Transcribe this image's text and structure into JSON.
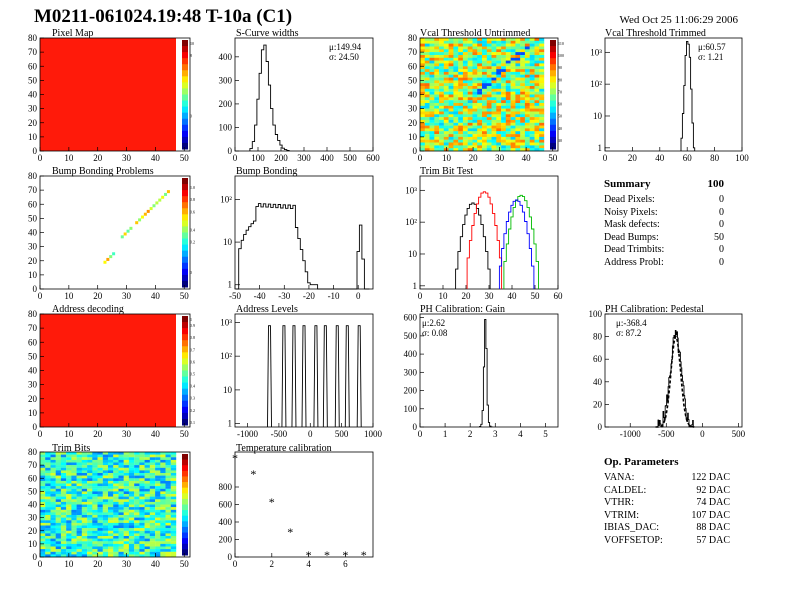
{
  "header": {
    "title": "M0211-061024.19:48 T-10a (C1)",
    "date": "Wed Oct 25 11:06:29 2006"
  },
  "colors": {
    "map_red": "#ff1a0a",
    "line": "#000000",
    "red": "#ff0000",
    "blue": "#0000ff",
    "green": "#00bb00"
  },
  "plots": [
    {
      "id": "pixel-map",
      "title": "Pixel Map",
      "type": "heatmap",
      "x_ticks": [
        0,
        10,
        20,
        30,
        40,
        50
      ],
      "y_ticks": [
        0,
        10,
        20,
        30,
        40,
        50,
        60,
        70,
        80
      ],
      "xlim": [
        0,
        52
      ],
      "ylim": [
        0,
        80
      ],
      "fill": "uniform-red",
      "palette_labels": [
        "10",
        "",
        "8",
        "",
        "",
        "",
        "",
        "",
        "",
        "",
        "",
        "",
        "0",
        "",
        "",
        "",
        "",
        ""
      ]
    },
    {
      "id": "scurve-widths",
      "title": "S-Curve widths",
      "type": "histogram",
      "x_ticks": [
        0,
        100,
        200,
        300,
        400,
        500,
        600
      ],
      "y_ticks": [
        0,
        100,
        200,
        300,
        400
      ],
      "xlim": [
        0,
        600
      ],
      "ylim": [
        0,
        480
      ],
      "stats": [
        "μ:149.94",
        "σ: 24.50"
      ],
      "x": [
        70,
        80,
        90,
        100,
        110,
        120,
        130,
        140,
        150,
        160,
        170,
        180,
        190,
        200,
        210,
        220,
        230
      ],
      "y": [
        10,
        40,
        110,
        220,
        330,
        430,
        450,
        380,
        280,
        180,
        110,
        70,
        45,
        25,
        12,
        6,
        2
      ]
    },
    {
      "id": "vcal-untrimmed",
      "title": "Vcal Threshold Untrimmed",
      "type": "heatmap",
      "x_ticks": [
        0,
        10,
        20,
        30,
        40,
        50
      ],
      "y_ticks": [
        0,
        10,
        20,
        30,
        40,
        50,
        60,
        70,
        80
      ],
      "xlim": [
        0,
        52
      ],
      "ylim": [
        0,
        80
      ],
      "fill": "green-noise",
      "palette_labels": [
        "110",
        "",
        "100",
        "",
        "90",
        "",
        "80",
        "",
        "70",
        "",
        "60",
        "",
        "50",
        "",
        "40",
        "",
        "30",
        ""
      ]
    },
    {
      "id": "vcal-trimmed",
      "title": "Vcal Threshold Trimmed",
      "type": "histogram",
      "log": true,
      "x_ticks": [
        0,
        20,
        40,
        60,
        80,
        100
      ],
      "y_labels": [
        "1",
        "10",
        "10²",
        "10³"
      ],
      "xlim": [
        0,
        100
      ],
      "stats": [
        "μ:60.57",
        "σ: 1.21"
      ],
      "x": [
        56,
        57,
        58,
        59,
        60,
        61,
        62,
        63,
        64,
        65
      ],
      "y": [
        2,
        12,
        90,
        800,
        2200,
        1800,
        700,
        70,
        6,
        1
      ]
    },
    {
      "id": "bump-problems",
      "title": "Bump Bonding Problems",
      "type": "scatter-map",
      "x_ticks": [
        0,
        10,
        20,
        30,
        40,
        50
      ],
      "y_ticks": [
        0,
        10,
        20,
        30,
        40,
        50,
        60,
        70,
        80
      ],
      "xlim": [
        0,
        52
      ],
      "ylim": [
        0,
        80
      ],
      "palette_labels": [
        "",
        "1.0",
        "",
        "0.8",
        "",
        "0.6",
        "",
        "",
        "0.4",
        "",
        "0.2",
        "",
        "",
        "",
        "",
        "0",
        "",
        ""
      ]
    },
    {
      "id": "bump-bonding",
      "title": "Bump Bonding",
      "type": "histogram",
      "log": true,
      "x_ticks": [
        -50,
        -40,
        -30,
        -20,
        -10,
        0
      ],
      "y_labels": [
        "1",
        "10",
        "10²"
      ],
      "xlim": [
        -50,
        6
      ]
    },
    {
      "id": "trim-bit",
      "title": "Trim Bit Test",
      "type": "histogram",
      "log": true,
      "x_ticks": [
        0,
        10,
        20,
        30,
        40,
        50,
        60
      ],
      "y_labels": [
        "1",
        "10",
        "10²",
        "10³"
      ],
      "xlim": [
        0,
        60
      ]
    },
    {
      "id": "address-decoding",
      "title": "Address decoding",
      "type": "heatmap",
      "x_ticks": [
        0,
        10,
        20,
        30,
        40,
        50
      ],
      "y_ticks": [
        0,
        10,
        20,
        30,
        40,
        50,
        60,
        70,
        80
      ],
      "xlim": [
        0,
        52
      ],
      "ylim": [
        0,
        80
      ],
      "fill": "uniform-red",
      "palette_labels": [
        "1",
        "0.9",
        "",
        "0.8",
        "",
        "0.7",
        "",
        "0.6",
        "",
        "0.5",
        "",
        "0.4",
        "",
        "0.3",
        "",
        "0.2",
        "",
        "0.1"
      ]
    },
    {
      "id": "address-levels",
      "title": "Address Levels",
      "type": "histogram",
      "log": true,
      "x_ticks": [
        -1000,
        -500,
        0,
        500,
        1000
      ],
      "tick_labels": [
        "-1000",
        "-500",
        "0",
        "500",
        "1000"
      ],
      "y_labels": [
        "1",
        "10",
        "10²",
        "10³"
      ],
      "xlim": [
        -1200,
        1000
      ],
      "peaks": [
        -650,
        -420,
        -260,
        -100,
        90,
        240,
        430,
        590,
        780
      ]
    },
    {
      "id": "ph-gain",
      "title": "PH Calibration: Gain",
      "type": "histogram",
      "x_ticks": [
        0,
        1,
        2,
        3,
        4,
        5
      ],
      "y_ticks": [
        0,
        100,
        200,
        300,
        400,
        500,
        600
      ],
      "xlim": [
        0,
        5.5
      ],
      "ylim": [
        0,
        620
      ],
      "stats": [
        "μ:2.62",
        "σ: 0.08"
      ],
      "x": [
        2.4,
        2.45,
        2.5,
        2.55,
        2.6,
        2.65,
        2.7,
        2.75,
        2.8,
        2.85
      ],
      "y": [
        3,
        15,
        90,
        330,
        590,
        430,
        120,
        25,
        5,
        1
      ]
    },
    {
      "id": "ph-pedestal",
      "title": "PH Calibration: Pedestal",
      "type": "histogram",
      "x_ticks": [
        -1000,
        -500,
        0,
        500
      ],
      "tick_labels": [
        "-1000",
        "-500",
        "0",
        "500"
      ],
      "y_ticks": [
        0,
        20,
        40,
        60,
        80,
        100
      ],
      "xlim": [
        -1350,
        550
      ],
      "ylim": [
        0,
        100
      ],
      "stats": [
        "μ:-368.4",
        "σ: 87.2"
      ]
    },
    {
      "id": "trim-bits",
      "title": "Trim Bits",
      "type": "heatmap",
      "x_ticks": [
        0,
        10,
        20,
        30,
        40,
        50
      ],
      "y_ticks": [
        0,
        10,
        20,
        30,
        40,
        50,
        60,
        70,
        80
      ],
      "xlim": [
        0,
        52
      ],
      "ylim": [
        0,
        80
      ],
      "fill": "trim-noise",
      "palette_labels": [
        "",
        "",
        "",
        "",
        "",
        "",
        "",
        "",
        "",
        "",
        "",
        "",
        "",
        "",
        "",
        "",
        "",
        ""
      ]
    },
    {
      "id": "temp-cal",
      "title": "Temperature calibration",
      "type": "scatter",
      "x_ticks": [
        0,
        2,
        4,
        6
      ],
      "y_ticks": [
        0,
        200,
        400,
        600,
        800
      ],
      "xlim": [
        0,
        7.5
      ],
      "ylim": [
        0,
        1200
      ],
      "x": [
        0,
        1,
        2,
        3,
        4,
        5,
        6,
        7
      ],
      "y": [
        1130,
        950,
        630,
        285,
        25,
        25,
        25,
        25
      ]
    }
  ],
  "summary": {
    "title": "Summary",
    "total": "100",
    "rows": [
      {
        "label": "Dead Pixels:",
        "value": "0"
      },
      {
        "label": "Noisy Pixels:",
        "value": "0"
      },
      {
        "label": "Mask defects:",
        "value": "0"
      },
      {
        "label": "Dead Bumps:",
        "value": "50"
      },
      {
        "label": "Dead Trimbits:",
        "value": "0"
      },
      {
        "label": "Address Probl:",
        "value": "0"
      }
    ]
  },
  "op_params": {
    "title": "Op. Parameters",
    "rows": [
      {
        "label": "VANA:",
        "value": "122 DAC"
      },
      {
        "label": "CALDEL:",
        "value": "92 DAC"
      },
      {
        "label": "VTHR:",
        "value": "74 DAC"
      },
      {
        "label": "VTRIM:",
        "value": "107 DAC"
      },
      {
        "label": "IBIAS_DAC:",
        "value": "88 DAC"
      },
      {
        "label": "VOFFSETOP:",
        "value": "57 DAC"
      }
    ]
  }
}
